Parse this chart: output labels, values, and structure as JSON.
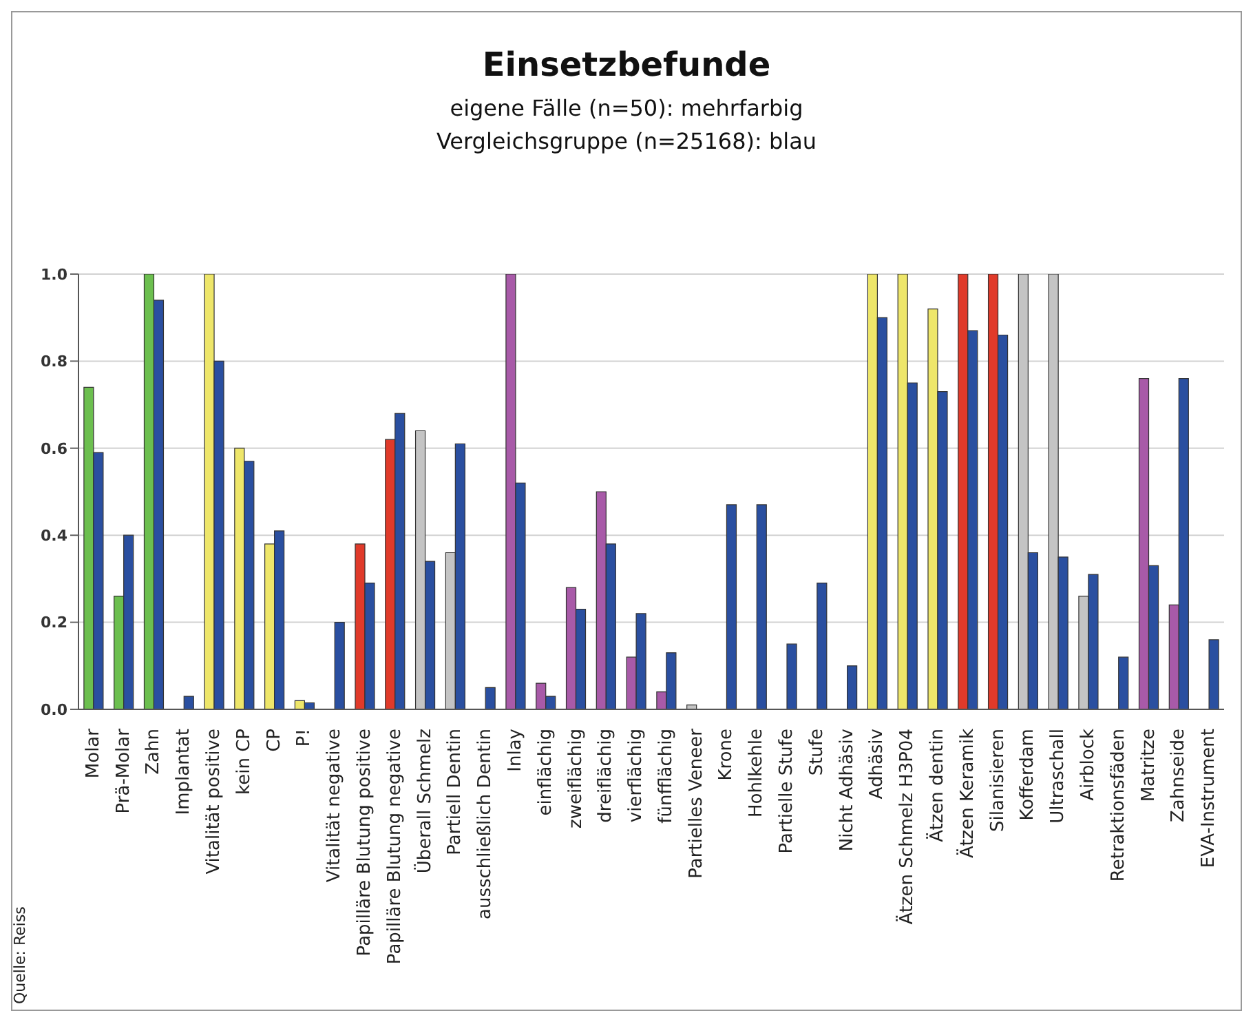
{
  "chart_data": {
    "type": "bar",
    "title": "Einsetzbefunde",
    "subtitle": "eigene Fälle (n=50): mehrfarbig\nVergleichsgruppe (n=25168): blau",
    "categories": [
      "Molar",
      "Prä-Molar",
      "Zahn",
      "Implantat",
      "Vitalität positive",
      "kein CP",
      "CP",
      "P!",
      "Vitalität negative",
      "Papilläre Blutung positive",
      "Papilläre Blutung negative",
      "Überall Schmelz",
      "Partiell Dentin",
      "ausschließlich Dentin",
      "Inlay",
      "einflächig",
      "zweiflächig",
      "dreiflächig",
      "vierflächig",
      "fünfflächig",
      "Partielles Veneer",
      "Krone",
      "Hohlkehle",
      "Partielle Stufe",
      "Stufe",
      "Nicht Adhäsiv",
      "Adhäsiv",
      "Ätzen Schmelz H3P04",
      "Ätzen dentin",
      "Ätzen Keramik",
      "Silanisieren",
      "Kofferdam",
      "Ultraschall",
      "Airblock",
      "Retraktionsfäden",
      "Matritze",
      "Zahnseide",
      "EVA-Instrument"
    ],
    "series": [
      {
        "colors": [
          "#6cbf4f",
          "#6cbf4f",
          "#6cbf4f",
          "#6cbf4f",
          "#eee66a",
          "#eee66a",
          "#eee66a",
          "#eee66a",
          "#e03a2a",
          "#e03a2a",
          "#e03a2a",
          "#c4c4c4",
          "#c4c4c4",
          "#c4c4c4",
          "#a85aa8",
          "#a85aa8",
          "#a85aa8",
          "#a85aa8",
          "#a85aa8",
          "#a85aa8",
          "#c4c4c4",
          "#a85aa8",
          "#a85aa8",
          "#a85aa8",
          "#a85aa8",
          "#eee66a",
          "#eee66a",
          "#eee66a",
          "#eee66a",
          "#e03a2a",
          "#e03a2a",
          "#c4c4c4",
          "#c4c4c4",
          "#c4c4c4",
          "#a85aa8",
          "#a85aa8",
          "#a85aa8",
          "#a85aa8"
        ],
        "values": [
          0.74,
          0.26,
          1.0,
          0,
          1.0,
          0.6,
          0.38,
          0.02,
          0,
          0.38,
          0.62,
          0.64,
          0.36,
          0,
          1.0,
          0.06,
          0.28,
          0.5,
          0.12,
          0.04,
          0.01,
          0,
          0,
          0,
          0,
          0,
          1.0,
          1.0,
          0.92,
          1.0,
          1.0,
          1.0,
          1.0,
          0.26,
          0,
          0.76,
          0.24,
          0
        ]
      },
      {
        "color": "#2a4fa0",
        "values": [
          0.59,
          0.4,
          0.94,
          0.03,
          0.8,
          0.57,
          0.41,
          0.015,
          0.2,
          0.29,
          0.68,
          0.34,
          0.61,
          0.05,
          0.52,
          0.03,
          0.23,
          0.38,
          0.22,
          0.13,
          0,
          0.47,
          0.47,
          0.15,
          0.29,
          0.1,
          0.9,
          0.75,
          0.73,
          0.87,
          0.86,
          0.36,
          0.35,
          0.31,
          0.12,
          0.33,
          0.76,
          0.16
        ]
      }
    ],
    "ylim": [
      0,
      1.0
    ],
    "yticks": [
      {
        "value": 0,
        "label": "0.0"
      },
      {
        "value": 0.2,
        "label": "0.2"
      },
      {
        "value": 0.4,
        "label": "0.4"
      },
      {
        "value": 0.6,
        "label": "0.6"
      },
      {
        "value": 0.8,
        "label": "0.8"
      },
      {
        "value": 1.0,
        "label": "1.0"
      }
    ],
    "grid": "y",
    "legend": false,
    "annotations": [
      "Quelle: Reiss"
    ]
  }
}
